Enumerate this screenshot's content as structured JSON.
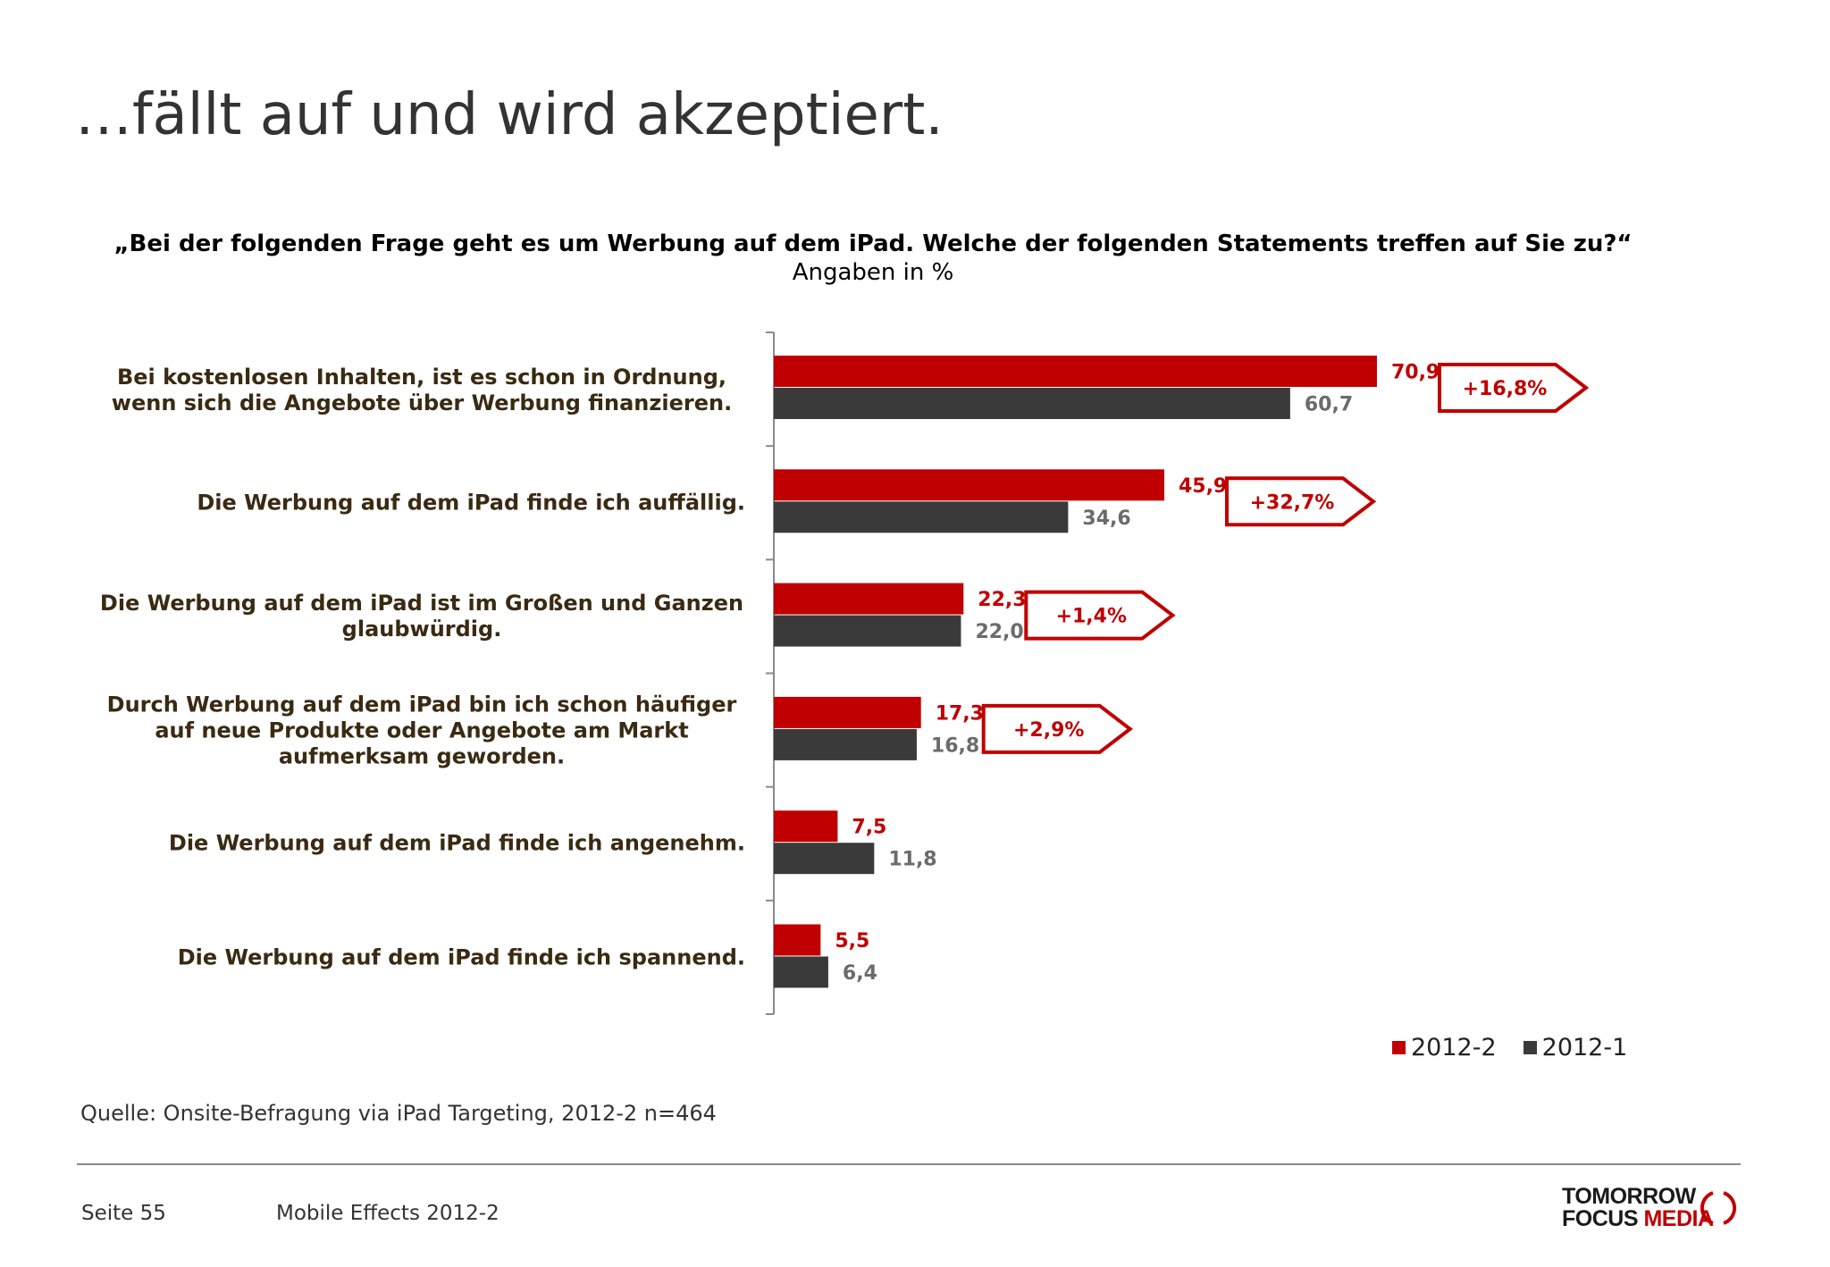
{
  "title": "…fällt auf und wird akzeptiert.",
  "question": "„Bei der folgenden Frage geht es um Werbung auf dem iPad. Welche der folgenden Statements treffen auf Sie zu?“",
  "subtitle": "Angaben in %",
  "colors": {
    "series_2012_2": "#c00000",
    "series_2012_1": "#3a3a3a",
    "label_2012_1": "#6b6b6b",
    "axis": "#8a8a8a"
  },
  "chart_data": {
    "type": "bar",
    "orientation": "horizontal",
    "title": "„Bei der folgenden Frage geht es um Werbung auf dem iPad. Welche der folgenden Statements treffen auf Sie zu?“",
    "subtitle": "Angaben in %",
    "categories": [
      "Bei kostenlosen Inhalten, ist es schon in Ordnung, wenn sich die Angebote über Werbung finanzieren.",
      "Die Werbung auf dem iPad finde ich auffällig.",
      "Die Werbung auf dem iPad ist im Großen und Ganzen glaubwürdig.",
      "Durch Werbung auf dem iPad bin ich schon häufiger auf neue Produkte oder Angebote am Markt aufmerksam geworden.",
      "Die Werbung auf dem iPad finde ich angenehm.",
      "Die Werbung auf dem iPad finde ich spannend."
    ],
    "series": [
      {
        "name": "2012-2",
        "values": [
          70.9,
          45.9,
          22.3,
          17.3,
          7.5,
          5.5
        ],
        "labels": [
          "70,9",
          "45,9",
          "22,3",
          "17,3",
          "7,5",
          "5,5"
        ],
        "color": "#c00000"
      },
      {
        "name": "2012-1",
        "values": [
          60.7,
          34.6,
          22.0,
          16.8,
          11.8,
          6.4
        ],
        "labels": [
          "60,7",
          "34,6",
          "22,0",
          "16,8",
          "11,8",
          "6,4"
        ],
        "color": "#3a3a3a"
      }
    ],
    "annotations": [
      "+16,8%",
      "+32,7%",
      "+1,4%",
      "+2,9%",
      null,
      null
    ],
    "legend": "bottom-right",
    "grid": false,
    "xlim": [
      0,
      100
    ]
  },
  "source": "Quelle: Onsite-Befragung via iPad Targeting, 2012-2 n=464",
  "footer": {
    "page": "Seite 55",
    "report": "Mobile Effects 2012-2"
  },
  "logo": {
    "line1": "TOMORROW",
    "line2a": "FOCUS",
    "line2b": "MEDIA"
  }
}
